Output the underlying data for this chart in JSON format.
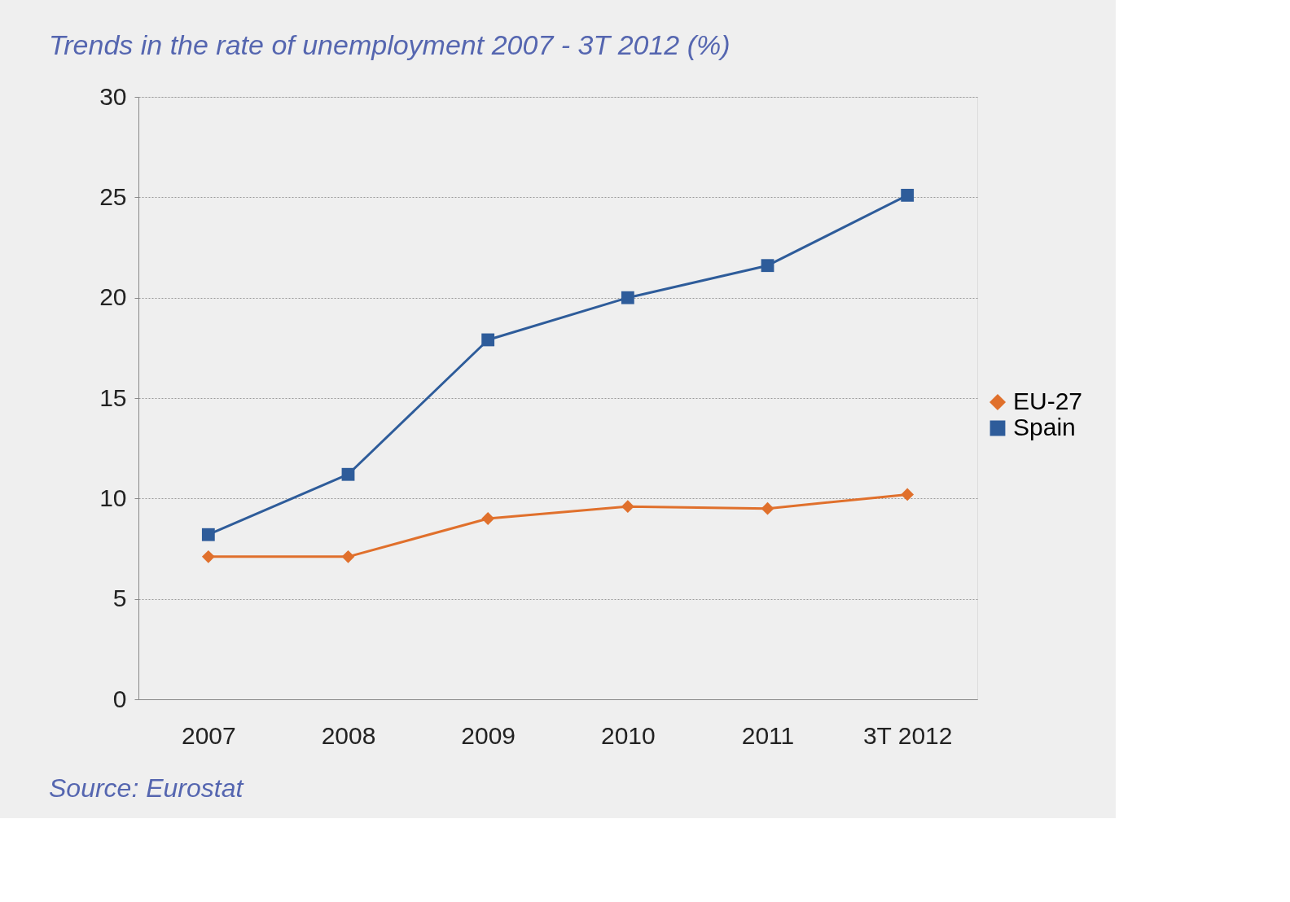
{
  "chart_data": {
    "type": "line",
    "title": "Trends in the rate of unemployment 2007 - 3T 2012 (%)",
    "categories": [
      "2007",
      "2008",
      "2009",
      "2010",
      "2011",
      "3T 2012"
    ],
    "series": [
      {
        "name": "EU-27",
        "color": "#e0702c",
        "marker": "diamond",
        "values": [
          7.1,
          7.1,
          9.0,
          9.6,
          9.5,
          10.2
        ]
      },
      {
        "name": "Spain",
        "color": "#2e5c9a",
        "marker": "square",
        "values": [
          8.2,
          11.2,
          17.9,
          20.0,
          21.6,
          25.1
        ]
      }
    ],
    "ylim": [
      0,
      30
    ],
    "yticks": [
      0,
      5,
      10,
      15,
      20,
      25,
      30
    ],
    "grid": "y",
    "legend": "right",
    "annotations": [
      "Source: Eurostat"
    ]
  }
}
